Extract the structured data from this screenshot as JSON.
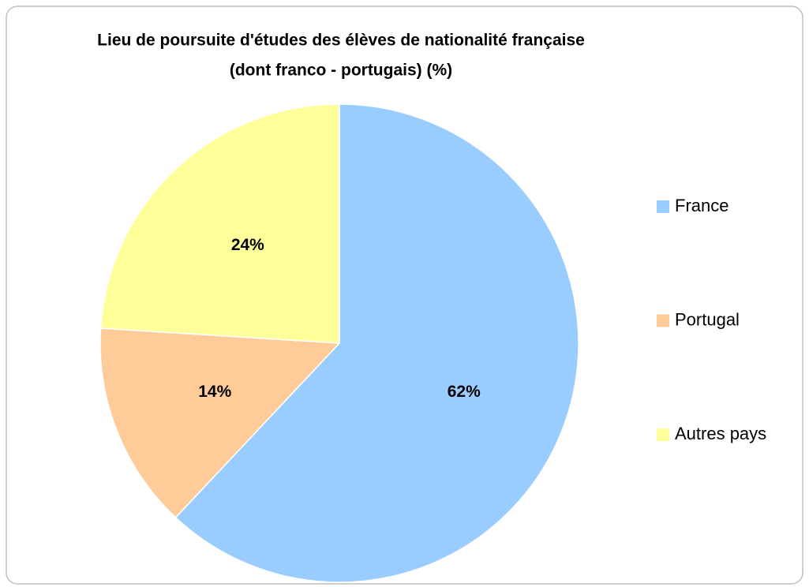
{
  "chart_data": {
    "type": "pie",
    "title": [
      "Lieu de poursuite d'études des élèves de nationalité française",
      "(dont franco - portugais) (%)"
    ],
    "categories": [
      "France",
      "Portugal",
      "Autres pays"
    ],
    "values": [
      62,
      14,
      24
    ],
    "value_labels": [
      "62%",
      "14%",
      "24%"
    ],
    "colors": [
      "#99ccff",
      "#ffcc99",
      "#ffff99"
    ],
    "legend": "right"
  }
}
